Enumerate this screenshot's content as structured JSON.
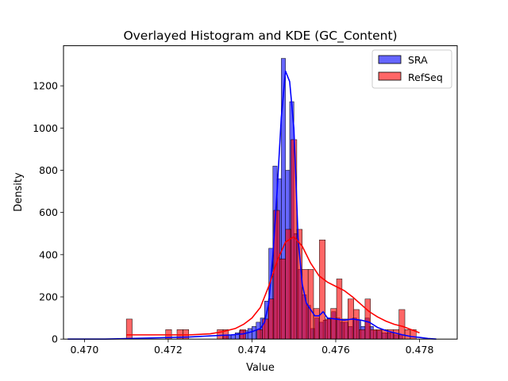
{
  "chart_data": {
    "type": "histogram",
    "title": "Overlayed Histogram and KDE (GC_Content)",
    "xlabel": "Value",
    "ylabel": "Density",
    "xlim": [
      0.4695,
      0.4789
    ],
    "ylim": [
      0,
      1390
    ],
    "xticks": [
      0.47,
      0.472,
      0.474,
      0.476,
      0.478
    ],
    "xtick_labels": [
      "0.470",
      "0.472",
      "0.474",
      "0.476",
      "0.478"
    ],
    "yticks": [
      0,
      200,
      400,
      600,
      800,
      1000,
      1200
    ],
    "ytick_labels": [
      "0",
      "200",
      "400",
      "600",
      "800",
      "1000",
      "1200"
    ],
    "legend": {
      "position": "upper right",
      "entries": [
        "SRA",
        "RefSeq"
      ]
    },
    "series": [
      {
        "name": "SRA",
        "color": "#0000ff",
        "bin_width": 0.0001,
        "bins": [
          [
            0.4733,
            0.4734,
            20
          ],
          [
            0.4734,
            0.4735,
            20
          ],
          [
            0.4735,
            0.4736,
            20
          ],
          [
            0.4736,
            0.4737,
            30
          ],
          [
            0.4737,
            0.4738,
            40
          ],
          [
            0.4738,
            0.4739,
            40
          ],
          [
            0.4739,
            0.474,
            50
          ],
          [
            0.474,
            0.4741,
            60
          ],
          [
            0.4741,
            0.4742,
            80
          ],
          [
            0.4742,
            0.4743,
            100
          ],
          [
            0.4743,
            0.4744,
            180
          ],
          [
            0.4744,
            0.4745,
            430
          ],
          [
            0.4745,
            0.4746,
            820
          ],
          [
            0.4746,
            0.4747,
            760
          ],
          [
            0.4747,
            0.4748,
            1330
          ],
          [
            0.4748,
            0.4749,
            800
          ],
          [
            0.4749,
            0.475,
            1125
          ],
          [
            0.475,
            0.4751,
            500
          ],
          [
            0.4751,
            0.4752,
            330
          ],
          [
            0.4752,
            0.4753,
            210
          ],
          [
            0.4753,
            0.4754,
            160
          ],
          [
            0.4754,
            0.4755,
            50
          ],
          [
            0.4755,
            0.4756,
            100
          ],
          [
            0.4756,
            0.4757,
            80
          ],
          [
            0.4757,
            0.4758,
            90
          ],
          [
            0.4758,
            0.4759,
            100
          ],
          [
            0.4759,
            0.476,
            130
          ],
          [
            0.476,
            0.4761,
            100
          ],
          [
            0.4761,
            0.4762,
            80
          ],
          [
            0.4762,
            0.4763,
            80
          ],
          [
            0.4763,
            0.4764,
            60
          ],
          [
            0.4764,
            0.4765,
            100
          ],
          [
            0.4765,
            0.4766,
            90
          ],
          [
            0.4766,
            0.4767,
            60
          ],
          [
            0.4767,
            0.4768,
            100
          ],
          [
            0.4768,
            0.4769,
            60
          ],
          [
            0.4769,
            0.477,
            40
          ],
          [
            0.477,
            0.4771,
            40
          ],
          [
            0.4771,
            0.4772,
            30
          ],
          [
            0.4772,
            0.4773,
            30
          ],
          [
            0.4773,
            0.4774,
            30
          ],
          [
            0.4774,
            0.4775,
            20
          ],
          [
            0.4775,
            0.4776,
            20
          ]
        ],
        "kde": {
          "x": [
            0.4696,
            0.4705,
            0.4715,
            0.4725,
            0.473,
            0.4735,
            0.4738,
            0.474,
            0.4742,
            0.4743,
            0.4744,
            0.4745,
            0.4746,
            0.4747,
            0.4748,
            0.4749,
            0.475,
            0.47505,
            0.4751,
            0.4752,
            0.4753,
            0.4754,
            0.4755,
            0.4756,
            0.4757,
            0.4758,
            0.476,
            0.4762,
            0.4764,
            0.4766,
            0.4768,
            0.477,
            0.4772,
            0.4774,
            0.4776,
            0.4778,
            0.478,
            0.4782,
            0.4784
          ],
          "y": [
            0,
            0,
            5,
            10,
            15,
            20,
            25,
            35,
            50,
            80,
            170,
            400,
            700,
            1050,
            1270,
            1220,
            1000,
            750,
            480,
            260,
            170,
            140,
            110,
            110,
            130,
            100,
            95,
            90,
            95,
            90,
            80,
            55,
            40,
            30,
            20,
            12,
            8,
            3,
            0
          ]
        }
      },
      {
        "name": "RefSeq",
        "color": "#ff0000",
        "bin_width": 0.0001355,
        "bins": [
          [
            0.471,
            0.47114,
            95
          ],
          [
            0.47194,
            0.47208,
            45
          ],
          [
            0.47221,
            0.47235,
            45
          ],
          [
            0.47235,
            0.47249,
            45
          ],
          [
            0.47317,
            0.47331,
            45
          ],
          [
            0.47331,
            0.47344,
            45
          ],
          [
            0.47371,
            0.47385,
            45
          ],
          [
            0.47412,
            0.47425,
            45
          ],
          [
            0.47425,
            0.47439,
            95
          ],
          [
            0.47439,
            0.47452,
            190
          ],
          [
            0.47452,
            0.47466,
            610
          ],
          [
            0.47466,
            0.4748,
            380
          ],
          [
            0.4748,
            0.47493,
            520
          ],
          [
            0.47493,
            0.47507,
            945
          ],
          [
            0.47507,
            0.4752,
            520
          ],
          [
            0.4752,
            0.47534,
            330
          ],
          [
            0.47534,
            0.47547,
            330
          ],
          [
            0.47547,
            0.47561,
            145
          ],
          [
            0.47561,
            0.47575,
            470
          ],
          [
            0.47575,
            0.47588,
            95
          ],
          [
            0.47588,
            0.47602,
            145
          ],
          [
            0.47602,
            0.47615,
            285
          ],
          [
            0.47615,
            0.47629,
            95
          ],
          [
            0.47629,
            0.47643,
            190
          ],
          [
            0.47643,
            0.47656,
            140
          ],
          [
            0.47656,
            0.4767,
            45
          ],
          [
            0.4767,
            0.47683,
            190
          ],
          [
            0.47683,
            0.47697,
            45
          ],
          [
            0.47697,
            0.4771,
            45
          ],
          [
            0.4771,
            0.47724,
            45
          ],
          [
            0.47724,
            0.47738,
            45
          ],
          [
            0.47738,
            0.47751,
            45
          ],
          [
            0.47751,
            0.47765,
            140
          ],
          [
            0.47765,
            0.47778,
            45
          ],
          [
            0.47778,
            0.47792,
            45
          ]
        ],
        "kde": {
          "x": [
            0.471,
            0.4715,
            0.472,
            0.4725,
            0.473,
            0.4733,
            0.4736,
            0.4738,
            0.474,
            0.4742,
            0.4744,
            0.4746,
            0.4748,
            0.475,
            0.4752,
            0.4754,
            0.4756,
            0.4758,
            0.476,
            0.4762,
            0.4764,
            0.4766,
            0.4768,
            0.477,
            0.4772,
            0.4774,
            0.4776,
            0.4778,
            0.478
          ],
          "y": [
            20,
            20,
            20,
            20,
            25,
            35,
            50,
            70,
            100,
            150,
            250,
            370,
            460,
            485,
            440,
            360,
            300,
            270,
            250,
            230,
            200,
            165,
            130,
            105,
            85,
            70,
            60,
            45,
            30
          ]
        }
      }
    ]
  }
}
